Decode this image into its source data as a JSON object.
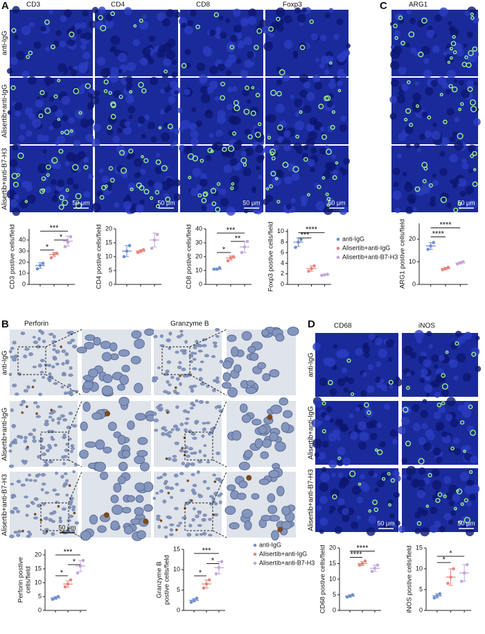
{
  "panels": {
    "A": {
      "letter": "A",
      "columns": [
        "CD3",
        "CD4",
        "CD8",
        "Foxp3"
      ],
      "rows": [
        "anti-IgG",
        "Alisertib+anti-IgG",
        "Alisertib+anti-B7-H3"
      ],
      "scale_bar": "50 μm"
    },
    "B": {
      "letter": "B",
      "columns": [
        "Perforin",
        "Granzyme B"
      ],
      "rows": [
        "anti-IgG",
        "Alisertib+anti-IgG",
        "Alisertib+anti-B7-H3"
      ],
      "scale_bar": "50 μm"
    },
    "C": {
      "letter": "C",
      "columns": [
        "ARG1"
      ],
      "scale_bar": "50 μm"
    },
    "D": {
      "letter": "D",
      "columns": [
        "CD68",
        "iNOS"
      ],
      "rows": [
        "anti-IgG",
        "Alisertib+anti-IgG",
        "Alisertib+anti-B7-H3"
      ],
      "scale_bar": "50 μm"
    }
  },
  "chart_data": [
    {
      "type": "dot",
      "ylabel": [
        "CD3 postive cells/field"
      ],
      "ylim": [
        0,
        50
      ],
      "yticks": [
        0,
        10,
        20,
        30,
        40
      ],
      "series": [
        {
          "color": "#6f8fd0",
          "values": [
            14,
            17,
            19
          ],
          "mean": 17,
          "sd": 2.5
        },
        {
          "color": "#e8857c",
          "values": [
            24,
            27,
            28
          ],
          "mean": 27,
          "sd": 2
        },
        {
          "color": "#c3a6dc",
          "values": [
            34,
            38,
            43
          ],
          "mean": 39,
          "sd": 4.5
        }
      ],
      "brackets": [
        {
          "groups": [
            0,
            1
          ],
          "y": 31,
          "label": "*"
        },
        {
          "groups": [
            1,
            2
          ],
          "y": 40,
          "label": "*"
        },
        {
          "groups": [
            0,
            2
          ],
          "y": 48,
          "label": "***"
        }
      ]
    },
    {
      "type": "dot",
      "ylabel": [
        "CD4 postive cells/field"
      ],
      "ylim": [
        0,
        20
      ],
      "yticks": [
        0,
        5,
        10,
        15,
        20
      ],
      "series": [
        {
          "color": "#6f8fd0",
          "values": [
            10,
            12,
            14
          ],
          "mean": 12,
          "sd": 2
        },
        {
          "color": "#e8857c",
          "values": [
            11.5,
            12,
            12.5
          ],
          "mean": 12,
          "sd": 0.5
        },
        {
          "color": "#c3a6dc",
          "values": [
            13,
            16,
            18
          ],
          "mean": 16,
          "sd": 2.5
        }
      ],
      "brackets": []
    },
    {
      "type": "dot",
      "ylabel": [
        "CD8 postive cells/field"
      ],
      "ylim": [
        0,
        40
      ],
      "yticks": [
        0,
        10,
        20,
        30,
        40
      ],
      "series": [
        {
          "color": "#6f8fd0",
          "values": [
            11,
            11,
            12
          ],
          "mean": 11,
          "sd": 0.5
        },
        {
          "color": "#e8857c",
          "values": [
            17,
            19,
            20
          ],
          "mean": 19,
          "sd": 1.5
        },
        {
          "color": "#c3a6dc",
          "values": [
            23,
            27,
            31
          ],
          "mean": 27,
          "sd": 4
        }
      ],
      "brackets": [
        {
          "groups": [
            0,
            1
          ],
          "y": 23,
          "label": "*"
        },
        {
          "groups": [
            1,
            2
          ],
          "y": 31,
          "label": "**"
        },
        {
          "groups": [
            0,
            2
          ],
          "y": 37,
          "label": "***"
        }
      ]
    },
    {
      "type": "dot",
      "ylabel": [
        "Foxp3 postive cells/field"
      ],
      "ylim": [
        0,
        10.5
      ],
      "yticks": [
        0,
        2,
        4,
        6,
        8,
        10
      ],
      "series": [
        {
          "name": "anti-IgG",
          "color": "#6f8fd0",
          "values": [
            7,
            8,
            8.5
          ],
          "mean": 8,
          "sd": 0.8
        },
        {
          "name": "Alisertib+anti-IgG",
          "color": "#e8857c",
          "values": [
            2.5,
            3,
            3.5
          ],
          "mean": 3,
          "sd": 0.5
        },
        {
          "name": "Alisertib+anti-B7-H3",
          "color": "#c3a6dc",
          "values": [
            1.7,
            1.8,
            1.9
          ],
          "mean": 1.8,
          "sd": 0.1
        }
      ],
      "brackets": [
        {
          "groups": [
            0,
            1
          ],
          "y": 8.8,
          "label": "***"
        },
        {
          "groups": [
            0,
            2
          ],
          "y": 9.8,
          "label": "****"
        }
      ]
    },
    {
      "type": "dot",
      "ylabel": [
        "ARG1 postive cells/field"
      ],
      "ylim": [
        0,
        27
      ],
      "yticks": [
        0,
        10,
        20
      ],
      "series": [
        {
          "color": "#6f8fd0",
          "values": [
            15.5,
            17,
            18.5
          ],
          "mean": 17,
          "sd": 1.5
        },
        {
          "color": "#e8857c",
          "values": [
            6.5,
            7,
            7.5
          ],
          "mean": 7,
          "sd": 0.5
        },
        {
          "color": "#c3a6dc",
          "values": [
            9,
            9.5,
            10
          ],
          "mean": 9.5,
          "sd": 0.5
        }
      ],
      "brackets": [
        {
          "groups": [
            0,
            1
          ],
          "y": 21,
          "label": "****"
        },
        {
          "groups": [
            0,
            2
          ],
          "y": 25,
          "label": "****"
        }
      ]
    },
    {
      "type": "dot",
      "ylabel": [
        "Perforin postive",
        "cells/field"
      ],
      "ylim": [
        0,
        22
      ],
      "yticks": [
        0,
        5,
        10,
        15,
        20
      ],
      "series": [
        {
          "color": "#6f8fd0",
          "values": [
            4,
            4.5,
            5
          ],
          "mean": 4.5,
          "sd": 0.5
        },
        {
          "color": "#e8857c",
          "values": [
            8.5,
            9.5,
            11
          ],
          "mean": 9.5,
          "sd": 1.2
        },
        {
          "color": "#c3a6dc",
          "values": [
            13.5,
            16,
            18
          ],
          "mean": 16,
          "sd": 2
        }
      ],
      "brackets": [
        {
          "groups": [
            0,
            1
          ],
          "y": 12.5,
          "label": "*"
        },
        {
          "groups": [
            1,
            2
          ],
          "y": 16.5,
          "label": "*"
        },
        {
          "groups": [
            0,
            2
          ],
          "y": 20,
          "label": "***"
        }
      ]
    },
    {
      "type": "dot",
      "ylabel": [
        "Granzyme B",
        "postive cells/field"
      ],
      "ylim": [
        0,
        15
      ],
      "yticks": [
        0,
        5,
        10,
        15
      ],
      "series": [
        {
          "name": "anti-IgG",
          "color": "#6f8fd0",
          "values": [
            2,
            2.5,
            3
          ],
          "mean": 2.5,
          "sd": 0.4
        },
        {
          "name": "Alisertib+anti-IgG",
          "color": "#e8857c",
          "values": [
            5.5,
            6.5,
            7.5
          ],
          "mean": 6.5,
          "sd": 1
        },
        {
          "name": "Alisertib+anti-B7-H3",
          "color": "#c3a6dc",
          "values": [
            9,
            10.5,
            12
          ],
          "mean": 10.5,
          "sd": 1.5
        }
      ],
      "brackets": [
        {
          "groups": [
            0,
            1
          ],
          "y": 8.5,
          "label": "*"
        },
        {
          "groups": [
            1,
            2
          ],
          "y": 11.5,
          "label": "*"
        },
        {
          "groups": [
            0,
            2
          ],
          "y": 14,
          "label": "***"
        }
      ]
    },
    {
      "type": "dot",
      "ylabel": [
        "CD68 postive cells/field"
      ],
      "ylim": [
        0,
        20
      ],
      "yticks": [
        0,
        5,
        10,
        15,
        20
      ],
      "series": [
        {
          "color": "#6f8fd0",
          "values": [
            4.3,
            4.6,
            5
          ],
          "mean": 4.6,
          "sd": 0.4
        },
        {
          "color": "#e8857c",
          "values": [
            14.5,
            15,
            15.8
          ],
          "mean": 15,
          "sd": 0.6
        },
        {
          "color": "#c3a6dc",
          "values": [
            12.5,
            13.5,
            14.5
          ],
          "mean": 13.5,
          "sd": 1
        }
      ],
      "brackets": [
        {
          "groups": [
            0,
            1
          ],
          "y": 17,
          "label": "****"
        },
        {
          "groups": [
            0,
            2
          ],
          "y": 19,
          "label": "****"
        }
      ]
    },
    {
      "type": "dot",
      "ylabel": [
        "iNOS postive cells/field"
      ],
      "ylim": [
        0,
        15
      ],
      "yticks": [
        0,
        5,
        10,
        15
      ],
      "series": [
        {
          "color": "#6f8fd0",
          "values": [
            3,
            3.5,
            4
          ],
          "mean": 3.5,
          "sd": 0.5
        },
        {
          "color": "#e8857c",
          "values": [
            6.5,
            8,
            10
          ],
          "mean": 8,
          "sd": 2
        },
        {
          "color": "#c3a6dc",
          "values": [
            7,
            9,
            11
          ],
          "mean": 9,
          "sd": 2
        }
      ],
      "brackets": [
        {
          "groups": [
            0,
            1
          ],
          "y": 11.5,
          "label": "*"
        },
        {
          "groups": [
            0,
            2
          ],
          "y": 13,
          "label": "*"
        }
      ]
    }
  ]
}
